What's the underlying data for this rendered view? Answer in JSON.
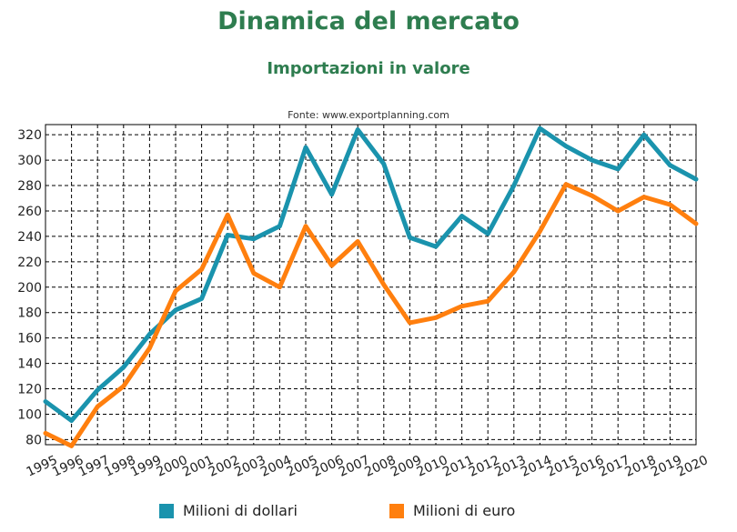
{
  "chart_data": {
    "type": "line",
    "title": "Dinamica del mercato",
    "subtitle": "Importazioni in valore",
    "source": "Fonte: www.exportplanning.com",
    "categories": [
      "1995",
      "1996",
      "1997",
      "1998",
      "1999",
      "2000",
      "2001",
      "2002",
      "2003",
      "2004",
      "2005",
      "2006",
      "2007",
      "2008",
      "2009",
      "2010",
      "2011",
      "2012",
      "2013",
      "2014",
      "2015",
      "2016",
      "2017",
      "2018",
      "2019",
      "2020"
    ],
    "ylim": [
      76,
      328
    ],
    "yticks": [
      80,
      100,
      120,
      140,
      160,
      180,
      200,
      220,
      240,
      260,
      280,
      300,
      320
    ],
    "grid": true,
    "legend_position": "bottom",
    "series": [
      {
        "name": "Milioni di dollari",
        "color": "#1a93ad",
        "values": [
          110,
          95,
          119,
          137,
          163,
          182,
          191,
          241,
          238,
          248,
          310,
          273,
          324,
          297,
          239,
          232,
          256,
          242,
          280,
          325,
          311,
          300,
          293,
          320,
          296,
          285
        ]
      },
      {
        "name": "Milioni di euro",
        "color": "#ff7f0e",
        "values": [
          85,
          75,
          106,
          122,
          152,
          197,
          214,
          257,
          211,
          200,
          248,
          217,
          236,
          202,
          172,
          176,
          185,
          189,
          212,
          244,
          281,
          272,
          260,
          271,
          265,
          250
        ]
      }
    ]
  },
  "colors": {
    "title": "#2e7d4f",
    "grid": "#000000"
  }
}
